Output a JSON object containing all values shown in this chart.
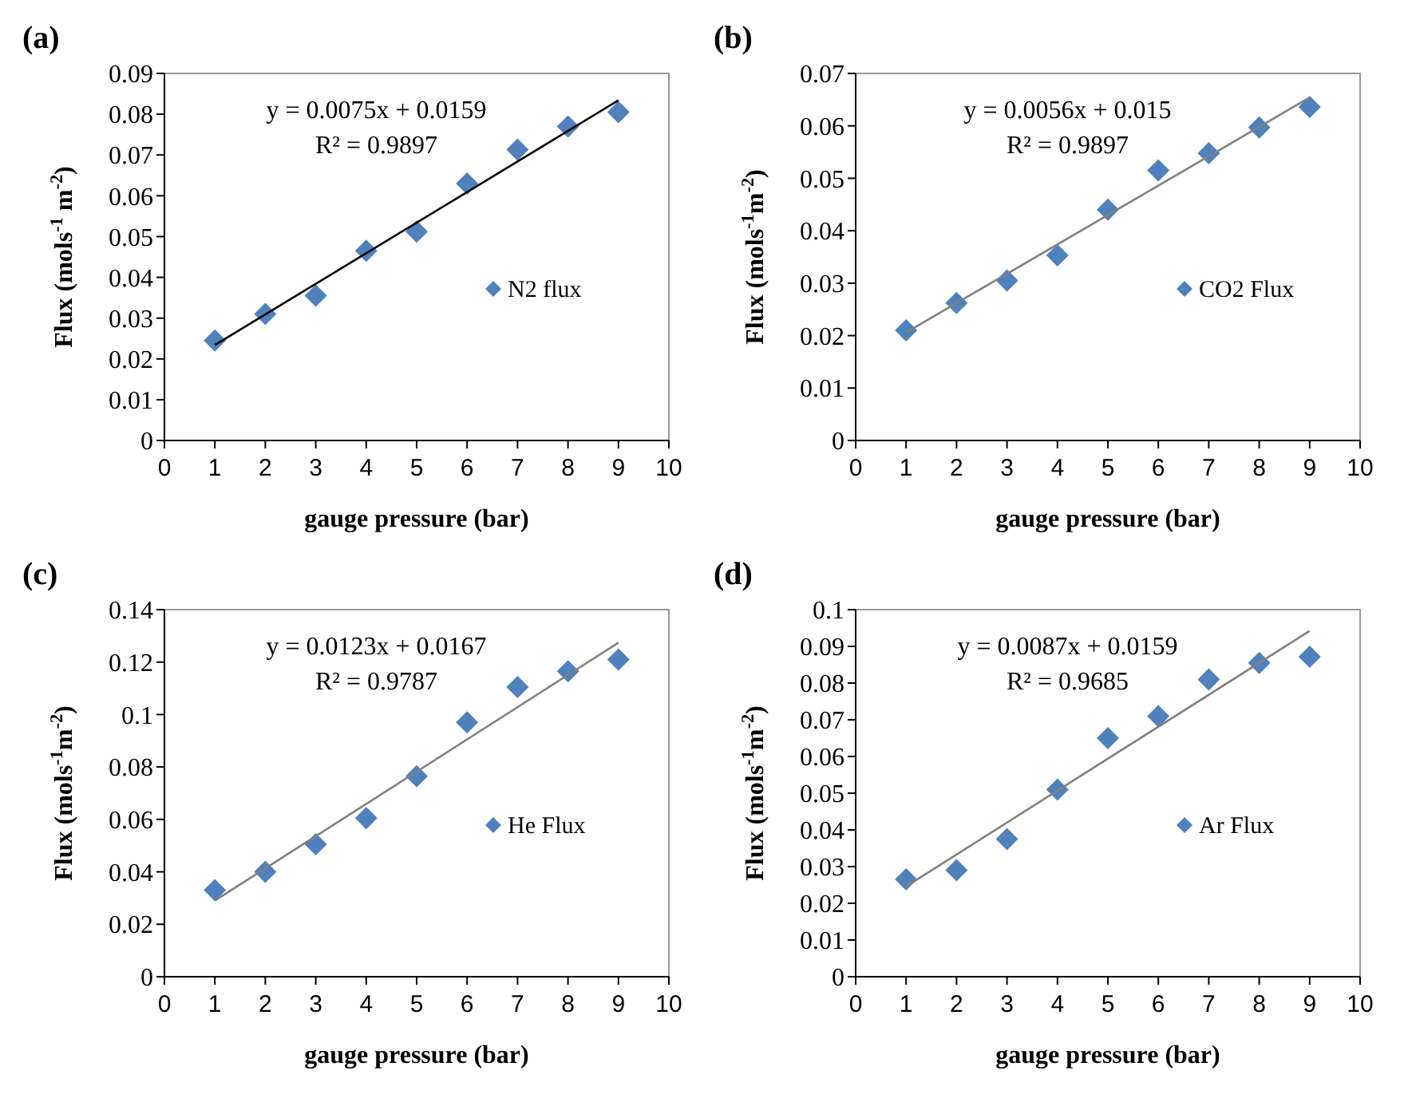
{
  "chart_data": [
    {
      "type": "scatter",
      "title": "(a)",
      "xlabel": "gauge pressure (bar)",
      "ylabel": "Flux (mols$^{-1}$ m$^{-2}$)",
      "xlim": [
        0,
        10
      ],
      "xticks": [
        0,
        1,
        2,
        3,
        4,
        5,
        6,
        7,
        8,
        9,
        10
      ],
      "ylim": [
        0,
        0.09
      ],
      "yticks": [
        0,
        0.01,
        0.02,
        0.03,
        0.04,
        0.05,
        0.06,
        0.07,
        0.08,
        0.09
      ],
      "legend": "right",
      "marker": "diamond",
      "annotations": [
        "y = 0.0075x + 0.0159",
        "R² = 0.9897"
      ],
      "series": [
        {
          "name": "N2 flux",
          "color": "#4f81bd",
          "x": [
            1,
            2,
            3,
            4,
            5,
            6,
            7,
            8,
            9
          ],
          "values": [
            0.0245,
            0.031,
            0.0355,
            0.0465,
            0.0512,
            0.063,
            0.0713,
            0.077,
            0.0805
          ]
        },
        {
          "type": "line",
          "marker": "none",
          "color": "#000000",
          "x": [
            1,
            9
          ],
          "values": [
            0.0234,
            0.0834
          ]
        }
      ]
    },
    {
      "type": "scatter",
      "title": "(b)",
      "xlabel": "gauge pressure  (bar)",
      "ylabel": "Flux (mols$^{-1}$m$^{-2}$)",
      "xlim": [
        0,
        10
      ],
      "xticks": [
        0,
        1,
        2,
        3,
        4,
        5,
        6,
        7,
        8,
        9,
        10
      ],
      "ylim": [
        0,
        0.07
      ],
      "yticks": [
        0,
        0.01,
        0.02,
        0.03,
        0.04,
        0.05,
        0.06,
        0.07
      ],
      "legend": "right",
      "marker": "diamond",
      "annotations": [
        "y = 0.0056x + 0.015",
        "R² = 0.9897"
      ],
      "series": [
        {
          "name": "CO2 Flux",
          "color": "#4f81bd",
          "x": [
            1,
            2,
            3,
            4,
            5,
            6,
            7,
            8,
            9
          ],
          "values": [
            0.021,
            0.0262,
            0.0305,
            0.0353,
            0.044,
            0.0515,
            0.0548,
            0.0597,
            0.0636
          ]
        },
        {
          "type": "line",
          "marker": "none",
          "color": "#808080",
          "x": [
            1,
            9
          ],
          "values": [
            0.0206,
            0.0654
          ]
        }
      ]
    },
    {
      "type": "scatter",
      "title": "(c)",
      "xlabel": "gauge pressure  (bar)",
      "ylabel": "Flux (mols$^{-1}$m$^{-2}$)",
      "xlim": [
        0,
        10
      ],
      "xticks": [
        0,
        1,
        2,
        3,
        4,
        5,
        6,
        7,
        8,
        9,
        10
      ],
      "ylim": [
        0,
        0.14
      ],
      "yticks": [
        0,
        0.02,
        0.04,
        0.06,
        0.08,
        0.1,
        0.12,
        0.14
      ],
      "legend": "right",
      "marker": "diamond",
      "annotations": [
        "y = 0.0123x + 0.0167",
        "R² = 0.9787"
      ],
      "series": [
        {
          "name": "He Flux",
          "color": "#4f81bd",
          "x": [
            1,
            2,
            3,
            4,
            5,
            6,
            7,
            8,
            9
          ],
          "values": [
            0.033,
            0.04,
            0.0505,
            0.0605,
            0.0765,
            0.097,
            0.1105,
            0.1165,
            0.121
          ]
        },
        {
          "type": "line",
          "marker": "none",
          "color": "#808080",
          "x": [
            1,
            9
          ],
          "values": [
            0.029,
            0.1274
          ]
        }
      ]
    },
    {
      "type": "scatter",
      "title": "(d)",
      "xlabel": "gauge pressure  (bar)",
      "ylabel": "Flux (mols$^{-1}$m$^{-2}$)",
      "xlim": [
        0,
        10
      ],
      "xticks": [
        0,
        1,
        2,
        3,
        4,
        5,
        6,
        7,
        8,
        9,
        10
      ],
      "ylim": [
        0,
        0.1
      ],
      "yticks": [
        0,
        0.01,
        0.02,
        0.03,
        0.04,
        0.05,
        0.06,
        0.07,
        0.08,
        0.09,
        0.1
      ],
      "legend": "right",
      "marker": "diamond",
      "annotations": [
        "y = 0.0087x + 0.0159",
        "R² = 0.9685"
      ],
      "series": [
        {
          "name": "Ar Flux",
          "color": "#4f81bd",
          "x": [
            1,
            2,
            3,
            4,
            5,
            6,
            7,
            8,
            9
          ],
          "values": [
            0.0265,
            0.029,
            0.0375,
            0.051,
            0.065,
            0.071,
            0.081,
            0.0855,
            0.0872
          ]
        },
        {
          "type": "line",
          "marker": "none",
          "color": "#808080",
          "x": [
            1,
            9
          ],
          "values": [
            0.0246,
            0.0942
          ]
        }
      ]
    }
  ]
}
